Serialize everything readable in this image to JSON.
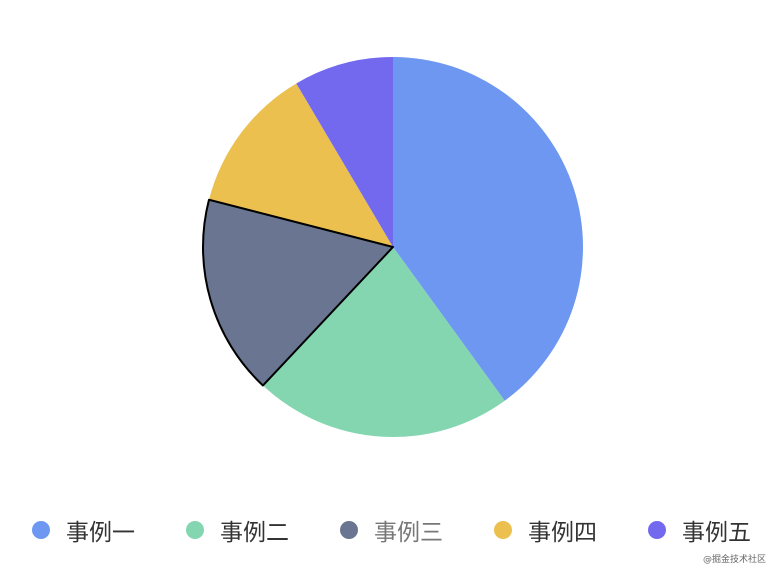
{
  "chart_data": {
    "type": "pie",
    "title": "",
    "slices": [
      {
        "label": "事例一",
        "value": 40,
        "color": "#6d97f0"
      },
      {
        "label": "事例二",
        "value": 22,
        "color": "#84d6b0"
      },
      {
        "label": "事例三",
        "value": 17,
        "color": "#697591",
        "highlighted": true
      },
      {
        "label": "事例四",
        "value": 12.5,
        "color": "#ecc04f"
      },
      {
        "label": "事例五",
        "value": 8.5,
        "color": "#7369ef"
      }
    ],
    "start_angle_deg": 90,
    "direction": "clockwise",
    "legend_position": "bottom"
  },
  "watermark": "@掘金技术社区"
}
